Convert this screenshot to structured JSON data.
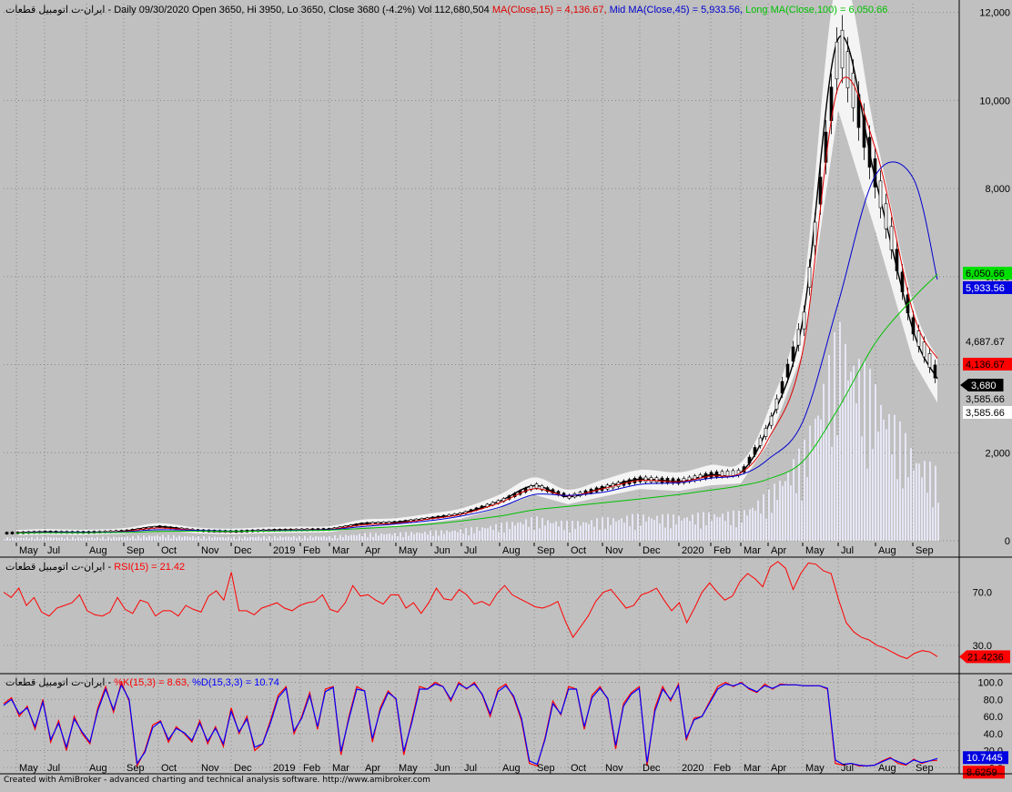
{
  "header": {
    "prefix": "ایران-ت اتومبیل قطعات - Daily 09/30/2020 Open 3650, Hi 3950, Lo 3650, Close 3680 (-4.2%) Vol 112,680,504 ",
    "ma_short": "MA(Close,15) = 4,136.67,",
    "ma_mid": " Mid MA(Close,45) = 5,933.56,",
    "ma_long": " Long MA(Close,100) = 6,050.66"
  },
  "rsi_header": {
    "prefix": "ایران-ت اتومبیل قطعات - ",
    "label": "RSI(15) = 21.42"
  },
  "stoch_header": {
    "prefix": "ایران-ت اتومبیل قطعات - ",
    "k_label": "%K(15,3) = 8.63,",
    "d_label": " %D(15,3,3) = 10.74"
  },
  "footer": "Created with AmiBroker - advanced charting and technical analysis software. http://www.amibroker.com",
  "colors": {
    "background": "#c0c0c0",
    "ma_short": "#e00000",
    "ma_mid": "#0000d0",
    "ma_long": "#00c000",
    "band": "#f4f4f4",
    "volume": "#e6e6f6",
    "candle_up": "#ffffff",
    "candle_down": "#000000",
    "rsi": "#ff0000",
    "k": "#ff0000",
    "d": "#0000ff"
  },
  "chart_data": [
    {
      "type": "candlestick",
      "title": "Daily 09/30/2020 Open 3650, Hi 3950, Lo 3650, Close 3680 (-4.2%) Vol 112,680,504",
      "last_bar": {
        "date": "09/30/2020",
        "open": 3650,
        "high": 3950,
        "low": 3650,
        "close": 3680,
        "change_pct": -4.2,
        "volume": 112680504
      },
      "ylim": [
        0,
        12200
      ],
      "y_ticks": [
        0,
        2000,
        4000,
        6000,
        8000,
        10000,
        12000
      ],
      "y_tick_labels": [
        "0",
        "2,000",
        "4,000",
        "6,000",
        "8,000",
        "10,000",
        "12,000"
      ],
      "x_tick_labels": [
        "May",
        "Jul",
        "Aug",
        "Sep",
        "Oct",
        "Nov",
        "Dec",
        "2019",
        "Feb",
        "Mar",
        "Apr",
        "May",
        "Jun",
        "Jul",
        "Aug",
        "Sep",
        "Oct",
        "Nov",
        "Dec",
        "2020",
        "Feb",
        "Mar",
        "Apr",
        "May",
        "Jul",
        "Aug",
        "Sep"
      ],
      "x": [
        "2018-05",
        "2018-07",
        "2018-08",
        "2018-09",
        "2018-10",
        "2018-11",
        "2018-12",
        "2019-01",
        "2019-02",
        "2019-03",
        "2019-04",
        "2019-05",
        "2019-06",
        "2019-07",
        "2019-08",
        "2019-09",
        "2019-10",
        "2019-11",
        "2019-12",
        "2020-01",
        "2020-02",
        "2020-03",
        "2020-04",
        "2020-05",
        "2020-07",
        "2020-08",
        "2020-09",
        "2020-09-30"
      ],
      "series": [
        {
          "name": "Close",
          "values": [
            180,
            200,
            190,
            220,
            320,
            230,
            210,
            240,
            250,
            260,
            390,
            420,
            520,
            620,
            900,
            1250,
            1000,
            1200,
            1400,
            1350,
            1500,
            1550,
            2600,
            5000,
            11400,
            8200,
            4800,
            3680
          ]
        },
        {
          "name": "MA(Close,15)",
          "values": [
            185,
            195,
            190,
            215,
            290,
            235,
            215,
            235,
            245,
            255,
            360,
            400,
            500,
            600,
            860,
            1180,
            1020,
            1180,
            1370,
            1340,
            1470,
            1540,
            2300,
            4300,
            10300,
            8900,
            5200,
            4136.67
          ]
        },
        {
          "name": "Mid MA(Close,45)",
          "values": [
            180,
            190,
            190,
            205,
            250,
            235,
            220,
            230,
            240,
            250,
            320,
            380,
            460,
            560,
            760,
            1050,
            1030,
            1100,
            1280,
            1320,
            1420,
            1500,
            1850,
            2700,
            5400,
            8300,
            8250,
            5933.56
          ]
        },
        {
          "name": "Long MA(Close,100)",
          "values": [
            175,
            180,
            182,
            190,
            210,
            220,
            215,
            220,
            230,
            240,
            280,
            320,
            380,
            450,
            560,
            700,
            780,
            860,
            950,
            1050,
            1150,
            1250,
            1400,
            1800,
            3000,
            4500,
            5500,
            6050.66
          ]
        }
      ],
      "value_labels": [
        "6,050.66",
        "5,933.56",
        "4,687.67",
        "4,136.67",
        "3,680",
        "3,585.66",
        "3,585.66"
      ]
    },
    {
      "type": "line",
      "title": "RSI(15) = 21.42",
      "ylim": [
        10,
        95
      ],
      "y_ticks": [
        30,
        70
      ],
      "y_tick_labels": [
        "30.0",
        "70.0"
      ],
      "series": [
        {
          "name": "RSI(15)",
          "values": [
            70,
            66,
            73,
            60,
            66,
            55,
            52,
            58,
            60,
            62,
            68,
            56,
            53,
            52,
            55,
            66,
            57,
            54,
            64,
            62,
            52,
            56,
            56,
            52,
            60,
            57,
            55,
            67,
            71,
            64,
            85,
            56,
            56,
            53,
            58,
            60,
            62,
            58,
            56,
            60,
            62,
            63,
            68,
            57,
            55,
            62,
            75,
            67,
            68,
            64,
            61,
            68,
            68,
            58,
            62,
            54,
            62,
            73,
            65,
            64,
            72,
            68,
            61,
            63,
            60,
            69,
            75,
            68,
            65,
            62,
            59,
            58,
            60,
            63,
            48,
            36,
            44,
            52,
            63,
            70,
            72,
            65,
            58,
            60,
            68,
            70,
            73,
            64,
            56,
            62,
            47,
            58,
            70,
            77,
            70,
            64,
            67,
            78,
            84,
            80,
            74,
            89,
            93,
            88,
            72,
            84,
            92,
            91,
            86,
            84,
            64,
            47,
            40,
            36,
            34,
            30,
            28,
            25,
            22,
            20,
            24,
            26,
            25,
            21.42
          ]
        }
      ],
      "value_labels": [
        "21.4236"
      ]
    },
    {
      "type": "line",
      "title": "%K(15,3) = 8.63, %D(15,3,3) = 10.74",
      "ylim": [
        -5,
        108
      ],
      "y_ticks": [
        0,
        20,
        40,
        60,
        80,
        100
      ],
      "y_tick_labels": [
        "0.0",
        "20.0",
        "40.0",
        "60.0",
        "80.0",
        "100.0"
      ],
      "series": [
        {
          "name": "%K(15,3)",
          "values": [
            75,
            82,
            60,
            72,
            45,
            80,
            30,
            55,
            20,
            60,
            40,
            28,
            70,
            95,
            65,
            100,
            78,
            2,
            20,
            50,
            55,
            30,
            48,
            40,
            30,
            55,
            28,
            48,
            25,
            70,
            40,
            60,
            20,
            28,
            55,
            85,
            95,
            40,
            60,
            88,
            45,
            92,
            95,
            15,
            60,
            95,
            90,
            30,
            70,
            90,
            80,
            15,
            55,
            95,
            92,
            100,
            95,
            78,
            100,
            92,
            100,
            85,
            60,
            92,
            98,
            82,
            55,
            5,
            2,
            35,
            78,
            62,
            95,
            92,
            45,
            85,
            95,
            80,
            22,
            75,
            88,
            95,
            2,
            70,
            95,
            78,
            98,
            32,
            58,
            60,
            78,
            95,
            100,
            95,
            100,
            92,
            88,
            98,
            92,
            98,
            97,
            97,
            96,
            96,
            96,
            92,
            5,
            3,
            5,
            2,
            2,
            3,
            8,
            12,
            5,
            3,
            10,
            5,
            8,
            8.63
          ]
        },
        {
          "name": "%D(15,3,3)",
          "values": [
            73,
            80,
            63,
            70,
            48,
            77,
            33,
            52,
            24,
            57,
            42,
            30,
            67,
            92,
            68,
            97,
            80,
            5,
            18,
            47,
            54,
            33,
            46,
            41,
            32,
            52,
            31,
            46,
            28,
            66,
            42,
            57,
            24,
            28,
            52,
            82,
            93,
            43,
            58,
            85,
            48,
            89,
            94,
            19,
            57,
            92,
            90,
            34,
            67,
            88,
            81,
            19,
            52,
            92,
            92,
            98,
            95,
            80,
            98,
            93,
            98,
            86,
            63,
            89,
            96,
            84,
            58,
            8,
            4,
            33,
            75,
            63,
            92,
            92,
            48,
            82,
            93,
            81,
            26,
            72,
            86,
            93,
            6,
            66,
            92,
            80,
            96,
            35,
            56,
            60,
            76,
            92,
            98,
            96,
            99,
            93,
            89,
            96,
            93,
            97,
            97,
            97,
            96,
            96,
            96,
            93,
            9,
            4,
            5,
            3,
            2,
            3,
            7,
            11,
            7,
            4,
            9,
            6,
            8,
            10.74
          ]
        }
      ],
      "value_labels": [
        "10.7445",
        "8.6259"
      ]
    }
  ]
}
